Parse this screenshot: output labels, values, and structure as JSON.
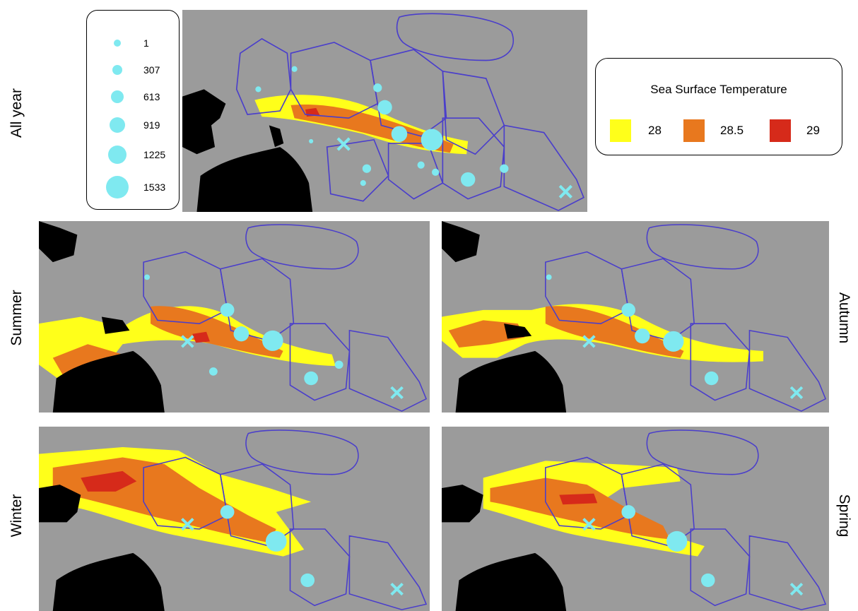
{
  "season_labels": {
    "all_year": "All year",
    "summer": "Summer",
    "autumn": "Autumn",
    "winter": "Winter",
    "spring": "Spring"
  },
  "size_legend": {
    "entries": [
      {
        "label": "1",
        "value": 1
      },
      {
        "label": "307",
        "value": 307
      },
      {
        "label": "613",
        "value": 613
      },
      {
        "label": "919",
        "value": 919
      },
      {
        "label": "1225",
        "value": 1225
      },
      {
        "label": "1533",
        "value": 1533
      }
    ],
    "marker_color": "#7fe9f0"
  },
  "sst_legend": {
    "title": "Sea Surface Temperature",
    "entries": [
      {
        "label": "28",
        "color": "#ffff1a"
      },
      {
        "label": "28.5",
        "color": "#e8781e"
      },
      {
        "label": "29",
        "color": "#d62a1a"
      }
    ]
  },
  "colors": {
    "ocean": "#9b9b9b",
    "land": "#000000",
    "zone_border": "#4a3ecb",
    "islands": "#1a1aff",
    "marker": "#7fe9f0",
    "marker_cross": "#7fe9f0"
  }
}
